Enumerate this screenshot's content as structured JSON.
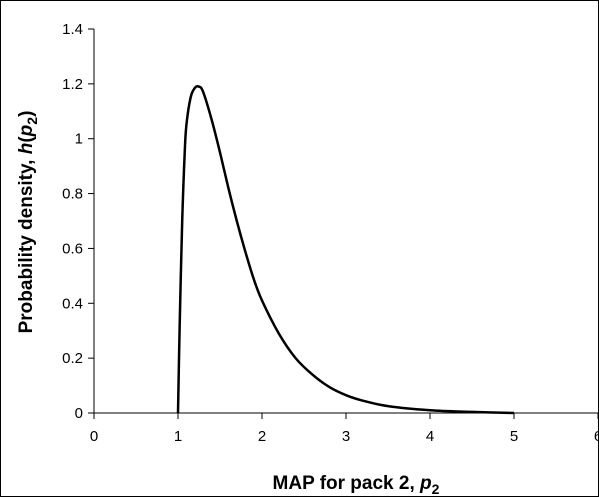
{
  "chart_data": {
    "type": "line",
    "title": "",
    "xlabel": "MAP for pack 2, p2",
    "xlabel_parts": {
      "text": "MAP for pack 2, ",
      "symbol": "p",
      "subscript": "2"
    },
    "ylabel": "Probability density, h(p2)",
    "ylabel_parts": {
      "text": "Probability density, ",
      "func": "h",
      "open": "(",
      "symbol": "p",
      "subscript": "2",
      "close": ")"
    },
    "xlim": [
      0,
      6
    ],
    "ylim": [
      0,
      1.4
    ],
    "x_ticks": [
      0,
      1,
      2,
      3,
      4,
      5,
      6
    ],
    "x_tick_labels": [
      "0",
      "1",
      "2",
      "3",
      "4",
      "5",
      "6"
    ],
    "y_ticks": [
      0,
      0.2,
      0.4,
      0.6,
      0.8,
      1.0,
      1.2,
      1.4
    ],
    "y_tick_labels": [
      "0",
      "0.2",
      "0.4",
      "0.6",
      "0.8",
      "1",
      "1.2",
      "1.4"
    ],
    "grid": false,
    "legend": "none",
    "line_color": "#000000",
    "series": [
      {
        "x": [
          1.0,
          1.02,
          1.05,
          1.08,
          1.1,
          1.15,
          1.2,
          1.25,
          1.3,
          1.4,
          1.5,
          1.6,
          1.7,
          1.8,
          1.9,
          2.0,
          2.2,
          2.4,
          2.6,
          2.8,
          3.0,
          3.2,
          3.5,
          4.0,
          4.5,
          5.0
        ],
        "values": [
          0.0,
          0.32,
          0.7,
          0.95,
          1.05,
          1.15,
          1.185,
          1.19,
          1.17,
          1.07,
          0.95,
          0.82,
          0.7,
          0.59,
          0.49,
          0.41,
          0.29,
          0.2,
          0.14,
          0.095,
          0.065,
          0.045,
          0.025,
          0.01,
          0.004,
          0.0
        ]
      }
    ]
  }
}
